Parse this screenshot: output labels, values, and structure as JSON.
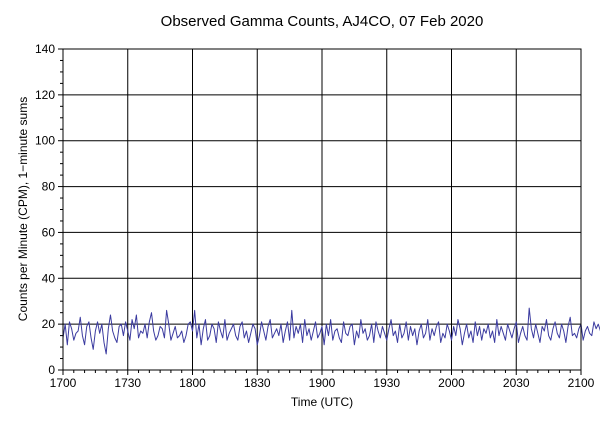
{
  "chart_data": {
    "type": "line",
    "title": "Observed Gamma Counts, AJ4CO, 07 Feb 2020",
    "xlabel": "Time (UTC)",
    "ylabel": "Counts per Minute (CPM), 1−minute sums",
    "xlim": [
      1020,
      1260
    ],
    "ylim": [
      0,
      140
    ],
    "x_unit": "minutes since 00:00 UTC",
    "x_ticks": [
      {
        "value": 1020,
        "label": "1700"
      },
      {
        "value": 1050,
        "label": "1730"
      },
      {
        "value": 1080,
        "label": "1800"
      },
      {
        "value": 1110,
        "label": "1830"
      },
      {
        "value": 1140,
        "label": "1900"
      },
      {
        "value": 1170,
        "label": "1930"
      },
      {
        "value": 1200,
        "label": "2000"
      },
      {
        "value": 1230,
        "label": "2030"
      },
      {
        "value": 1260,
        "label": "2100"
      }
    ],
    "y_ticks": [
      0,
      20,
      40,
      60,
      80,
      100,
      120,
      140
    ],
    "grid": true,
    "series": [
      {
        "color": "#3b3ba0",
        "x_start": 1020,
        "x_step": 1,
        "values": [
          14,
          20,
          11,
          21,
          18,
          13,
          16,
          17,
          23,
          15,
          11,
          19,
          21,
          14,
          9,
          17,
          21,
          16,
          20,
          12,
          7,
          18,
          24,
          17,
          14,
          12,
          19,
          20,
          15,
          21,
          17,
          13,
          22,
          18,
          24,
          14,
          17,
          16,
          20,
          14,
          21,
          25,
          17,
          13,
          15,
          19,
          18,
          14,
          26,
          20,
          13,
          16,
          19,
          14,
          15,
          17,
          12,
          15,
          20,
          21,
          17,
          26,
          14,
          20,
          11,
          18,
          22,
          13,
          15,
          20,
          18,
          12,
          21,
          17,
          14,
          22,
          13,
          16,
          18,
          20,
          15,
          13,
          19,
          21,
          14,
          17,
          12,
          16,
          20,
          18,
          11,
          15,
          21,
          17,
          13,
          19,
          22,
          14,
          16,
          18,
          15,
          20,
          12,
          17,
          21,
          13,
          26,
          14,
          19,
          16,
          20,
          12,
          22,
          15,
          18,
          13,
          17,
          21,
          14,
          16,
          19,
          11,
          20,
          15,
          22,
          13,
          17,
          18,
          14,
          12,
          21,
          16,
          15,
          19,
          20,
          11,
          17,
          14,
          22,
          16,
          18,
          13,
          15,
          20,
          12,
          21,
          17,
          14,
          19,
          16,
          13,
          18,
          22,
          15,
          17,
          12,
          20,
          14,
          16,
          21,
          13,
          19,
          15,
          18,
          11,
          17,
          20,
          14,
          16,
          22,
          13,
          18,
          15,
          19,
          21,
          12,
          16,
          14,
          20,
          17,
          13,
          19,
          15,
          22,
          18,
          11,
          16,
          20,
          14,
          17,
          12,
          21,
          15,
          19,
          13,
          18,
          16,
          20,
          14,
          17,
          12,
          22,
          15,
          19,
          16,
          13,
          20,
          17,
          14,
          18,
          21,
          12,
          16,
          19,
          15,
          13,
          27,
          18,
          14,
          20,
          16,
          12,
          19,
          17,
          22,
          15,
          13,
          18,
          21,
          16,
          14,
          20,
          17,
          12,
          19,
          23,
          15,
          16,
          14,
          18,
          20,
          13,
          17,
          19,
          16,
          15,
          21,
          18,
          20,
          17,
          19
        ]
      }
    ]
  }
}
